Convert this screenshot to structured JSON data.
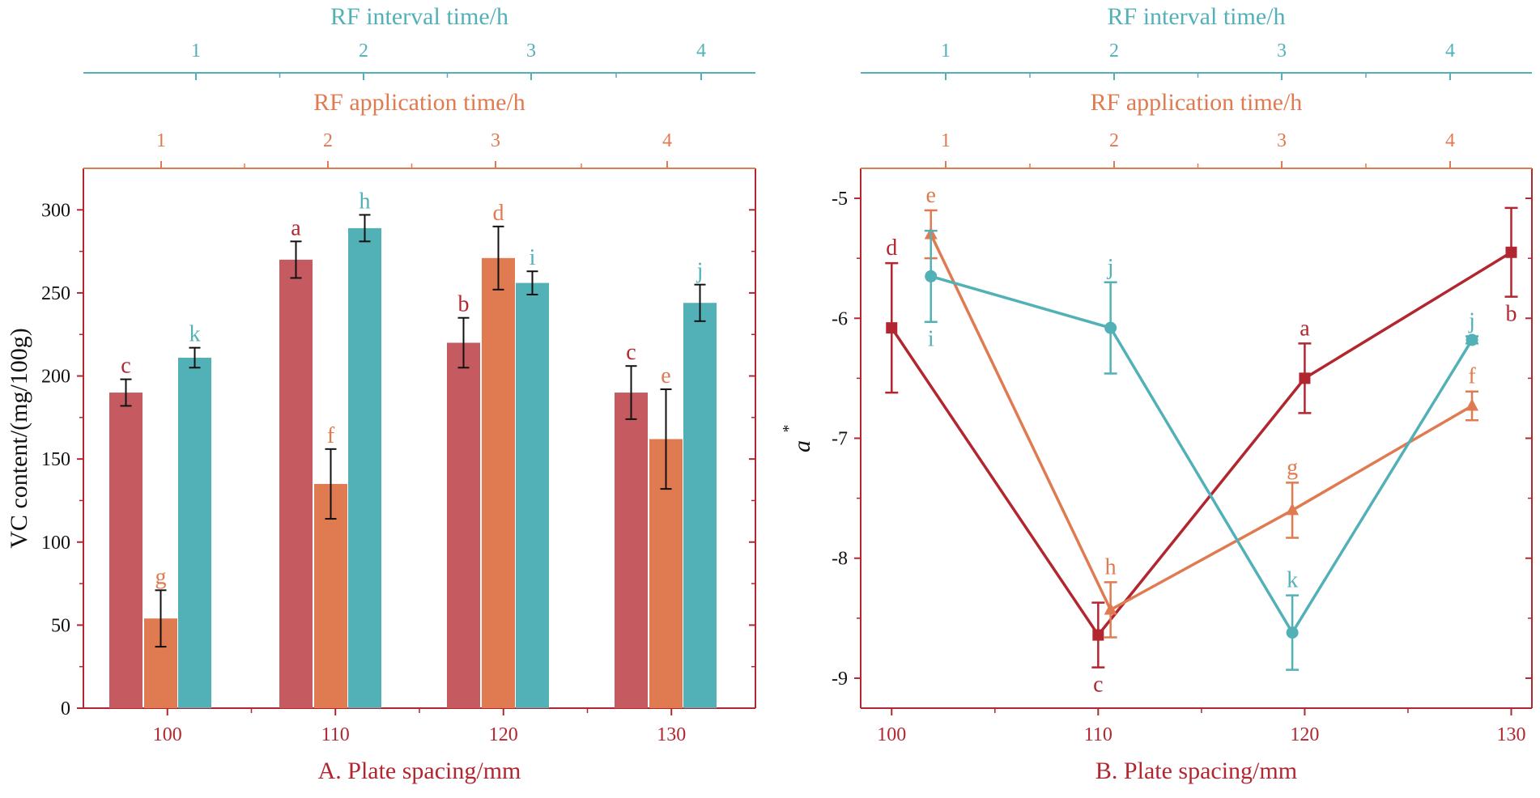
{
  "colors": {
    "plate": "#c55b61",
    "plate_dark": "#b22630",
    "application": "#e07a50",
    "interval": "#52b1b7",
    "axis_dark": "#b22630",
    "error": "#111111"
  },
  "chart_data": [
    {
      "panel": "A",
      "type": "bar",
      "xlabel": "A. Plate spacing/mm",
      "ylabel": "VC content/(mg/100g)",
      "ylim": [
        0,
        325
      ],
      "yticks": [
        "0",
        "50",
        "100",
        "150",
        "200",
        "250",
        "300"
      ],
      "xlim": [
        95,
        135
      ],
      "xticks": [
        "100",
        "110",
        "120",
        "130"
      ],
      "top_axis_application": {
        "label": "RF application time/h",
        "ticks": [
          "1",
          "2",
          "3",
          "4"
        ]
      },
      "top_axis_interval": {
        "label": "RF interval time/h",
        "ticks": [
          "1",
          "2",
          "3",
          "4"
        ]
      },
      "series": [
        {
          "name": "Plate spacing",
          "values": [
            190,
            270,
            220,
            190
          ],
          "errors": [
            8,
            11,
            15,
            16
          ],
          "letters": [
            "c",
            "a",
            "b",
            "c"
          ]
        },
        {
          "name": "RF application time",
          "values": [
            54,
            135,
            271,
            162
          ],
          "errors": [
            17,
            21,
            19,
            30
          ],
          "letters": [
            "g",
            "f",
            "d",
            "e"
          ]
        },
        {
          "name": "RF interval time",
          "values": [
            211,
            289,
            256,
            244
          ],
          "errors": [
            6,
            8,
            7,
            11
          ],
          "letters": [
            "k",
            "h",
            "i",
            "j"
          ]
        }
      ]
    },
    {
      "panel": "B",
      "type": "line",
      "xlabel": "B. Plate spacing/mm",
      "ylabel": "a",
      "ylabel_sup": "*",
      "ylim": [
        -9.25,
        -4.75
      ],
      "yticks": [
        "-5",
        "-6",
        "-7",
        "-8",
        "-9"
      ],
      "xlim": [
        98.5,
        131
      ],
      "xticks": [
        "100",
        "110",
        "120",
        "130"
      ],
      "top_axis_application": {
        "label": "RF application time/h",
        "ticks": [
          "1",
          "2",
          "3",
          "4"
        ]
      },
      "top_axis_interval": {
        "label": "RF interval time/h",
        "ticks": [
          "1",
          "2",
          "3",
          "4"
        ]
      },
      "series": [
        {
          "name": "Plate spacing",
          "marker": "square",
          "x": [
            100,
            110,
            120,
            130
          ],
          "values": [
            -6.08,
            -8.64,
            -6.5,
            -5.45
          ],
          "errors": [
            0.54,
            0.27,
            0.29,
            0.37
          ],
          "letters": [
            "d",
            "c",
            "a",
            "b"
          ]
        },
        {
          "name": "RF application time",
          "marker": "triangle",
          "x": [
            101.9,
            110.6,
            119.4,
            128.1
          ],
          "values": [
            -5.3,
            -8.43,
            -7.6,
            -6.73
          ],
          "errors": [
            0.2,
            0.23,
            0.23,
            0.12
          ],
          "letters": [
            "e",
            "h",
            "g",
            "f"
          ]
        },
        {
          "name": "RF interval time",
          "marker": "circle",
          "x": [
            101.9,
            110.6,
            119.4,
            128.1
          ],
          "values": [
            -5.65,
            -6.08,
            -8.62,
            -6.18
          ],
          "errors": [
            0.38,
            0.38,
            0.31,
            0.03
          ],
          "letters": [
            "i",
            "j",
            "k",
            "j"
          ]
        }
      ]
    }
  ]
}
